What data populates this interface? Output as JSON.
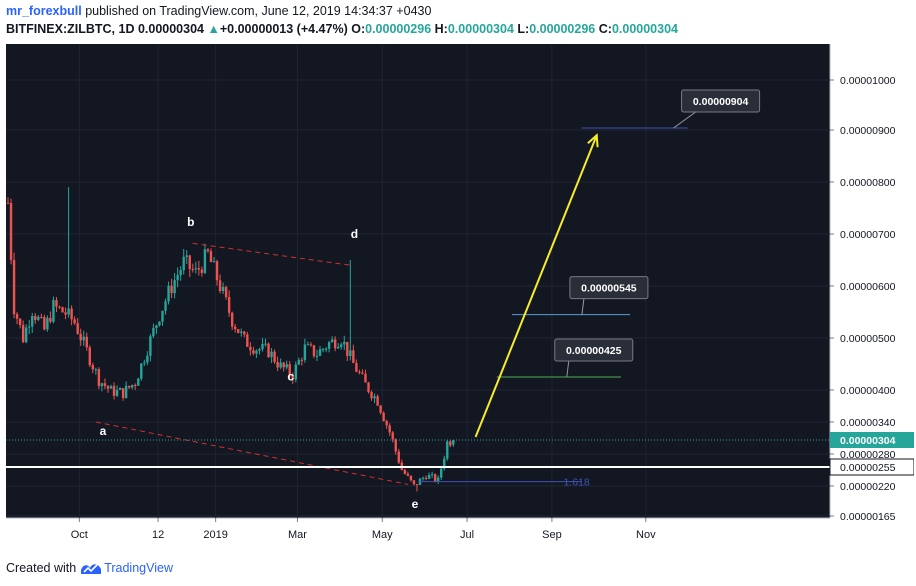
{
  "header": {
    "username": "mr_forexbull",
    "published_text": "published on TradingView.com, June 12, 2019 14:34:37 +0430",
    "symbol": "BITFINEX:ZILBTC, 1D",
    "last_price": "0.00000304",
    "change": "+0.00000013 (+4.47%)",
    "o_label": "O:",
    "o_value": "0.00000296",
    "h_label": "H:",
    "h_value": "0.00000304",
    "l_label": "L:",
    "l_value": "0.00000296",
    "c_label": "C:",
    "c_value": "0.00000304"
  },
  "footer": {
    "created_with": "Created with",
    "brand": "TradingView"
  },
  "colors": {
    "up": "#26a69a",
    "down": "#ef5350",
    "axis_bg": "#ffffff",
    "plot_bg": "#131722",
    "accent": "#2962ff"
  },
  "chart_data": {
    "type": "candlestick",
    "title": "BITFINEX:ZILBTC, 1D",
    "x_tick_labels": [
      "Oct",
      "12",
      "2019",
      "Mar",
      "May",
      "Jul",
      "Sep",
      "Nov"
    ],
    "y_tick_labels": [
      "0.00001000",
      "0.00000900",
      "0.00000800",
      "0.00000700",
      "0.00000600",
      "0.00000500",
      "0.00000400",
      "0.00000340",
      "0.00000280",
      "0.00000220",
      "0.00000165"
    ],
    "y_tick_values": [
      1000,
      900,
      800,
      700,
      600,
      500,
      400,
      340,
      280,
      220,
      165
    ],
    "last_price_label": "0.00000304",
    "last_price_value": 304,
    "support_label": "0.00000255",
    "support_value": 255,
    "fib_label": "1.618",
    "fib_value": 228,
    "wave_labels": [
      {
        "label": "a",
        "t": 32,
        "v": 314
      },
      {
        "label": "b",
        "t": 61,
        "v": 715
      },
      {
        "label": "c",
        "t": 94,
        "v": 418
      },
      {
        "label": "d",
        "t": 115,
        "v": 692
      },
      {
        "label": "e",
        "t": 135,
        "v": 180
      }
    ],
    "targets": [
      {
        "label": "0.00000425",
        "value": 425,
        "color": "#4caf50"
      },
      {
        "label": "0.00000545",
        "value": 545,
        "color": "#5b9bd5"
      },
      {
        "label": "0.00000904",
        "value": 904,
        "color": "#3f51b5"
      }
    ],
    "projection_arrow": {
      "from_t": 155,
      "from_v": 310,
      "to_t": 195,
      "to_v": 890,
      "color": "#f5ec2a"
    },
    "trendlines": [
      {
        "from_t": 29,
        "from_v": 340,
        "to_t": 132,
        "to_v": 223
      },
      {
        "from_t": 61,
        "from_v": 682,
        "to_t": 113,
        "to_v": 640
      }
    ],
    "keypoints": [
      {
        "t": 0,
        "v": 760
      },
      {
        "t": 2,
        "v": 560
      },
      {
        "t": 5,
        "v": 500
      },
      {
        "t": 8,
        "v": 555
      },
      {
        "t": 12,
        "v": 515
      },
      {
        "t": 15,
        "v": 560
      },
      {
        "t": 19,
        "v": 548
      },
      {
        "t": 22,
        "v": 530
      },
      {
        "t": 26,
        "v": 475
      },
      {
        "t": 30,
        "v": 420
      },
      {
        "t": 34,
        "v": 398
      },
      {
        "t": 38,
        "v": 395
      },
      {
        "t": 42,
        "v": 415
      },
      {
        "t": 46,
        "v": 480
      },
      {
        "t": 50,
        "v": 545
      },
      {
        "t": 54,
        "v": 600
      },
      {
        "t": 58,
        "v": 645
      },
      {
        "t": 62,
        "v": 625
      },
      {
        "t": 66,
        "v": 660
      },
      {
        "t": 70,
        "v": 600
      },
      {
        "t": 74,
        "v": 535
      },
      {
        "t": 78,
        "v": 495
      },
      {
        "t": 82,
        "v": 480
      },
      {
        "t": 86,
        "v": 475
      },
      {
        "t": 90,
        "v": 445
      },
      {
        "t": 94,
        "v": 430
      },
      {
        "t": 98,
        "v": 480
      },
      {
        "t": 102,
        "v": 470
      },
      {
        "t": 106,
        "v": 490
      },
      {
        "t": 110,
        "v": 500
      },
      {
        "t": 114,
        "v": 450
      },
      {
        "t": 118,
        "v": 410
      },
      {
        "t": 122,
        "v": 380
      },
      {
        "t": 126,
        "v": 320
      },
      {
        "t": 130,
        "v": 250
      },
      {
        "t": 134,
        "v": 220
      },
      {
        "t": 138,
        "v": 240
      },
      {
        "t": 142,
        "v": 230
      },
      {
        "t": 145,
        "v": 300
      },
      {
        "t": 147,
        "v": 304
      }
    ],
    "spikes": [
      {
        "t": 20,
        "v": 790
      },
      {
        "t": 113,
        "v": 650
      },
      {
        "t": 135,
        "v": 210
      }
    ]
  }
}
